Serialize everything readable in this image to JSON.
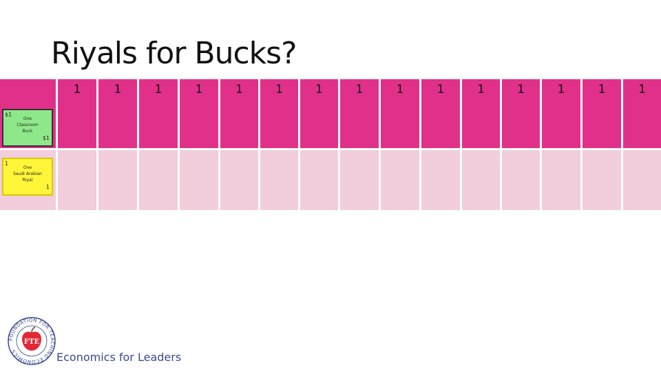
{
  "slide": {
    "title": "Riyals for Bucks?"
  },
  "table": {
    "header_values": [
      "1",
      "1",
      "1",
      "1",
      "1",
      "1",
      "1",
      "1",
      "1",
      "1",
      "1",
      "1",
      "1",
      "1",
      "1"
    ]
  },
  "notes": {
    "green": {
      "top_left": "$1",
      "bottom_right": "$1",
      "lines": [
        "One",
        "Classroom",
        "Buck"
      ],
      "color": "#8ee88a"
    },
    "yellow": {
      "top_left": "1",
      "bottom_right": "1",
      "lines": [
        "One",
        "Saudi Arabian",
        "Riyal"
      ],
      "color": "#fff63a"
    }
  },
  "footer": {
    "logo_badge": "FTE",
    "logo_ring_text": "FOUNDATION FOR TEACHING ECONOMICS",
    "brand": "Economics for Leaders"
  },
  "colors": {
    "header_row": "#e1308a",
    "body_row": "#f2cddb",
    "apple": "#e32636",
    "brand_text": "#3a4a8c"
  }
}
